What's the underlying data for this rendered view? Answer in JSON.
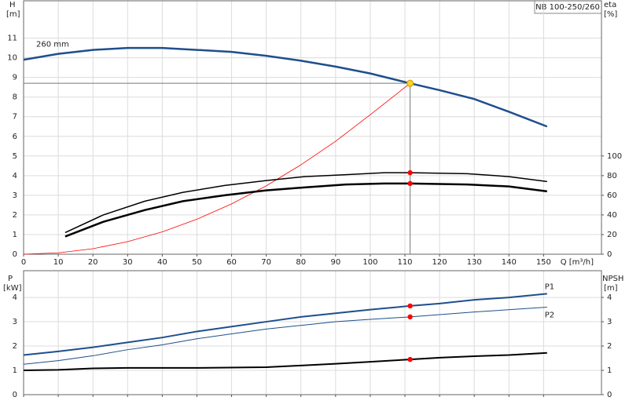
{
  "chart_data": [
    {
      "type": "line",
      "title": "NB 100-250/260",
      "ylabel": "H",
      "yunit": "[m]",
      "y2label": "eta",
      "y2unit": "[%]",
      "xlabel": "Q [m³/h]",
      "xlim": [
        0,
        166.7
      ],
      "xticks": [
        0,
        10,
        20,
        30,
        40,
        50,
        60,
        70,
        80,
        90,
        100,
        110,
        120,
        130,
        140,
        150
      ],
      "ylim": [
        0,
        12.9
      ],
      "yticks": [
        0,
        1,
        2,
        3,
        4,
        5,
        6,
        7,
        8,
        9,
        10,
        11
      ],
      "y2lim": [
        0,
        258
      ],
      "y2ticks": [
        0,
        20,
        40,
        60,
        80,
        100
      ],
      "grid": true,
      "show_xtick_labels": true,
      "duty_point": {
        "x": 111.5,
        "y": 8.7,
        "color": "#ffd320"
      },
      "series": [
        {
          "name": "260 mm",
          "color": "#1f4e8c",
          "line_width": 2.5,
          "x": [
            0,
            10,
            20,
            30,
            40,
            50,
            60,
            70,
            80,
            90,
            100,
            111.5,
            120,
            130,
            140,
            151
          ],
          "values": [
            9.9,
            10.2,
            10.4,
            10.5,
            10.5,
            10.4,
            10.3,
            10.1,
            9.85,
            9.55,
            9.2,
            8.7,
            8.35,
            7.9,
            7.25,
            6.5
          ]
        },
        {
          "color": "#ff0000",
          "line_width": 0.8,
          "x": [
            0,
            10,
            20,
            30,
            40,
            50,
            60,
            70,
            80,
            90,
            100,
            111.5
          ],
          "values": [
            0,
            0.07,
            0.28,
            0.64,
            1.14,
            1.78,
            2.56,
            3.48,
            4.55,
            5.75,
            7.1,
            8.7
          ]
        },
        {
          "color": "#000000",
          "line_width": 1.5,
          "axis": "y2",
          "x": [
            12,
            23,
            35,
            46,
            58,
            70,
            81,
            93,
            104,
            111.5,
            128,
            140,
            151
          ],
          "values": [
            22,
            40,
            54,
            63,
            70,
            75,
            79,
            81,
            83,
            83,
            82,
            79,
            74
          ],
          "marker": {
            "x": 111.5,
            "value": 83,
            "color": "#ff0000"
          }
        },
        {
          "color": "#000000",
          "line_width": 2.5,
          "axis": "y2",
          "x": [
            12,
            23,
            35,
            46,
            58,
            70,
            81,
            93,
            104,
            111.5,
            128,
            140,
            151
          ],
          "values": [
            18,
            33,
            45,
            54,
            60,
            65,
            68,
            71,
            72,
            72,
            71,
            69,
            64
          ],
          "marker": {
            "x": 111.5,
            "value": 72,
            "color": "#ff0000"
          }
        }
      ]
    },
    {
      "type": "line",
      "ylabel": "P",
      "yunit": "[kW]",
      "y2label": "NPSH",
      "y2unit": "[m]",
      "xlim": [
        0,
        166.7
      ],
      "xticks": [
        0,
        10,
        20,
        30,
        40,
        50,
        60,
        70,
        80,
        90,
        100,
        110,
        120,
        130,
        140,
        150
      ],
      "ylim": [
        0,
        5.1
      ],
      "yticks": [
        0,
        1,
        2,
        3,
        4
      ],
      "y2lim": [
        0,
        5.1
      ],
      "y2ticks": [
        0,
        1,
        2,
        3,
        4
      ],
      "grid": true,
      "show_xtick_labels": false,
      "series": [
        {
          "name": "P1",
          "color": "#1f4e8c",
          "line_width": 2,
          "x": [
            0,
            10,
            20,
            30,
            40,
            50,
            60,
            70,
            80,
            90,
            100,
            111.5,
            120,
            130,
            140,
            151
          ],
          "values": [
            1.63,
            1.78,
            1.95,
            2.15,
            2.35,
            2.6,
            2.8,
            3.0,
            3.2,
            3.35,
            3.5,
            3.65,
            3.75,
            3.9,
            4.0,
            4.15
          ],
          "marker": {
            "x": 111.5,
            "value": 3.65,
            "color": "#ff0000"
          }
        },
        {
          "name": "P2",
          "color": "#1f4e8c",
          "line_width": 1,
          "x": [
            0,
            10,
            20,
            30,
            40,
            50,
            60,
            70,
            80,
            90,
            100,
            111.5,
            130,
            151
          ],
          "values": [
            1.25,
            1.4,
            1.6,
            1.85,
            2.05,
            2.3,
            2.5,
            2.7,
            2.85,
            3.0,
            3.1,
            3.2,
            3.4,
            3.6
          ],
          "marker": {
            "x": 111.5,
            "value": 3.2,
            "color": "#ff0000"
          }
        },
        {
          "color": "#000000",
          "line_width": 2,
          "axis": "y2",
          "x": [
            0,
            10,
            20,
            30,
            50,
            70,
            80,
            90,
            100,
            111.5,
            120,
            130,
            140,
            151
          ],
          "values": [
            1.0,
            1.02,
            1.08,
            1.1,
            1.1,
            1.13,
            1.2,
            1.27,
            1.35,
            1.45,
            1.52,
            1.58,
            1.63,
            1.72
          ],
          "marker": {
            "x": 111.5,
            "value": 1.45,
            "color": "#ff0000"
          }
        }
      ]
    }
  ]
}
